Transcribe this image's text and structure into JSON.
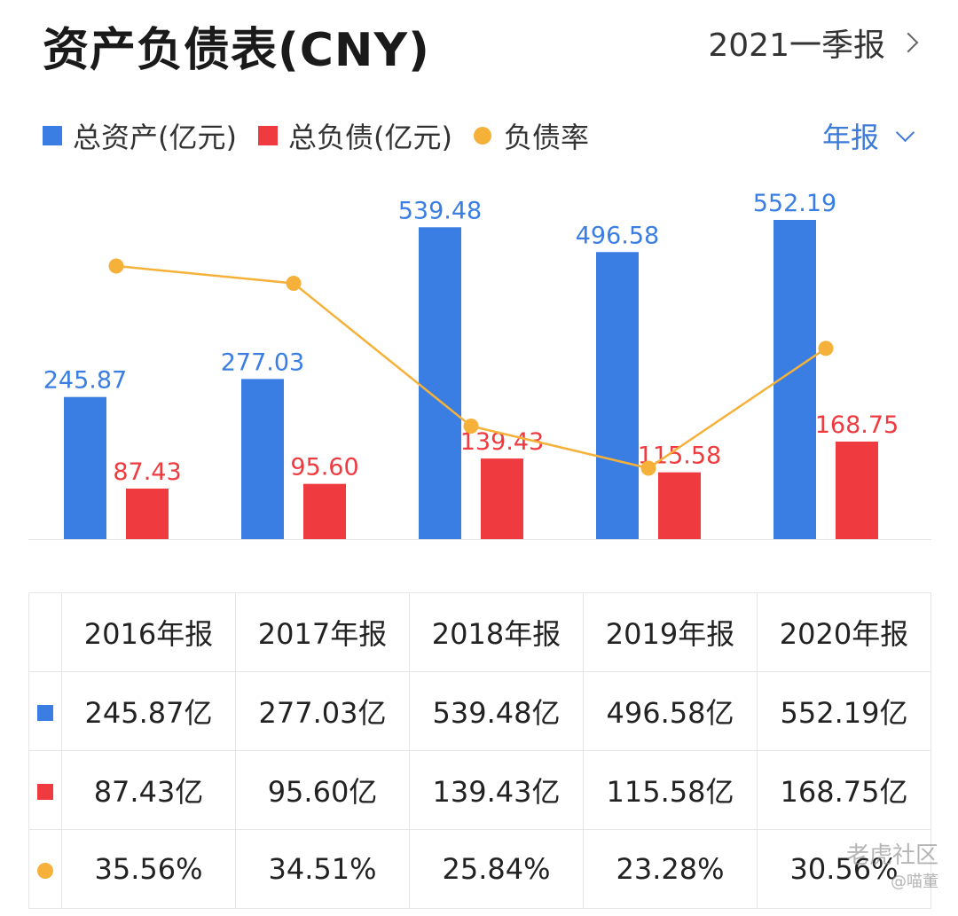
{
  "header": {
    "title": "资产负债表(CNY)",
    "period": "2021一季报"
  },
  "legend": {
    "assets": "总资产(亿元)",
    "liabilities": "总负债(亿元)",
    "ratio": "负债率"
  },
  "period_select": {
    "label": "年报"
  },
  "colors": {
    "assets": "#3a7ee3",
    "liabilities": "#ef3b40",
    "ratio": "#f5b13a"
  },
  "chart_data": {
    "type": "bar",
    "categories": [
      "2016年报",
      "2017年报",
      "2018年报",
      "2019年报",
      "2020年报"
    ],
    "series": [
      {
        "name": "总资产(亿元)",
        "type": "bar",
        "values": [
          245.87,
          277.03,
          539.48,
          496.58,
          552.19
        ],
        "labels": [
          "245.87",
          "277.03",
          "539.48",
          "496.58",
          "552.19"
        ]
      },
      {
        "name": "总负债(亿元)",
        "type": "bar",
        "values": [
          87.43,
          95.6,
          139.43,
          115.58,
          168.75
        ],
        "labels": [
          "87.43",
          "95.60",
          "139.43",
          "115.58",
          "168.75"
        ]
      },
      {
        "name": "负债率",
        "type": "line",
        "unit": "%",
        "values": [
          35.56,
          34.51,
          25.84,
          23.28,
          30.56
        ]
      }
    ],
    "ylim": [
      0,
      552.19
    ],
    "ratio_ylim": [
      23.28,
      35.56
    ],
    "title": "资产负债表(CNY)"
  },
  "table": {
    "headers": [
      "2016年报",
      "2017年报",
      "2018年报",
      "2019年报",
      "2020年报"
    ],
    "rows": [
      {
        "marker": "assets",
        "cells": [
          "245.87亿",
          "277.03亿",
          "539.48亿",
          "496.58亿",
          "552.19亿"
        ]
      },
      {
        "marker": "liabilities",
        "cells": [
          "87.43亿",
          "95.60亿",
          "139.43亿",
          "115.58亿",
          "168.75亿"
        ]
      },
      {
        "marker": "ratio",
        "cells": [
          "35.56%",
          "34.51%",
          "25.84%",
          "23.28%",
          "30.56%"
        ]
      }
    ]
  },
  "watermark": {
    "line1": "老虎社区",
    "line2": "@喵董"
  }
}
